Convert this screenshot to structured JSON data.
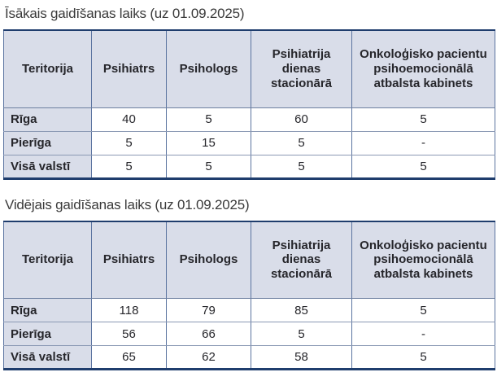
{
  "colors": {
    "header_fill": "#d9dde9",
    "outer_border": "#1f3d6d",
    "column_rule": "#5b74a0",
    "row_rule": "#8b99b4",
    "text": "#26262b",
    "title_text": "#3a3a3a"
  },
  "chart_data": [
    {
      "type": "table",
      "title": "Īsākais gaidīšanas laiks (uz 01.09.2025)",
      "columns": [
        "Teritorija",
        "Psihiatrs",
        "Psihologs",
        "Psihiatrija dienas stacionārā",
        "Onkoloģisko pacientu psihoemocionālā atbalsta kabinets"
      ],
      "rows": [
        [
          "Rīga",
          "40",
          "5",
          "60",
          "5"
        ],
        [
          "Pierīga",
          "5",
          "15",
          "5",
          "-"
        ],
        [
          "Visā valstī",
          "5",
          "5",
          "5",
          "5"
        ]
      ]
    },
    {
      "type": "table",
      "title": "Vidējais gaidīšanas laiks (uz 01.09.2025)",
      "columns": [
        "Teritorija",
        "Psihiatrs",
        "Psihologs",
        "Psihiatrija dienas stacionārā",
        "Onkoloģisko pacientu psihoemocionālā atbalsta kabinets"
      ],
      "rows": [
        [
          "Rīga",
          "118",
          "79",
          "85",
          "5"
        ],
        [
          "Pierīga",
          "56",
          "66",
          "5",
          "-"
        ],
        [
          "Visā valstī",
          "65",
          "62",
          "58",
          "5"
        ]
      ]
    }
  ]
}
